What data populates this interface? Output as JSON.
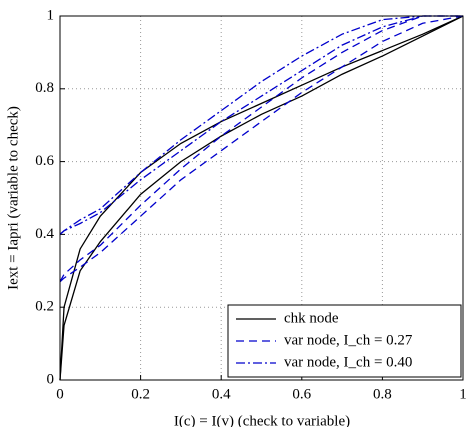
{
  "chart_data": {
    "type": "line",
    "xlabel": "I(c) = I(v) (check to variable)",
    "ylabel": "Iext = Iapri (variable to check)",
    "x": [
      0,
      0.01,
      0.05,
      0.1,
      0.2,
      0.3,
      0.4,
      0.5,
      0.6,
      0.7,
      0.8,
      0.9,
      1
    ],
    "series": [
      {
        "name": "chk node",
        "color": "#000000",
        "dash": "none",
        "curves": [
          {
            "values": [
              0,
              0.2,
              0.36,
              0.45,
              0.57,
              0.65,
              0.71,
              0.76,
              0.81,
              0.86,
              0.905,
              0.95,
              1
            ]
          },
          {
            "values": [
              0,
              0.15,
              0.3,
              0.38,
              0.51,
              0.6,
              0.67,
              0.73,
              0.78,
              0.84,
              0.89,
              0.945,
              1
            ]
          }
        ]
      },
      {
        "name": "var node, I_ch = 0.27",
        "color": "#0000cc",
        "dash": "8 5",
        "curves": [
          {
            "values": [
              0.27,
              0.29,
              0.33,
              0.37,
              0.48,
              0.58,
              0.67,
              0.75,
              0.83,
              0.9,
              0.96,
              1,
              1
            ]
          },
          {
            "values": [
              0.27,
              0.28,
              0.31,
              0.35,
              0.45,
              0.55,
              0.63,
              0.71,
              0.79,
              0.86,
              0.93,
              0.98,
              1
            ]
          }
        ]
      },
      {
        "name": "var node, I_ch = 0.40",
        "color": "#0000cc",
        "dash": "9 3 2 3",
        "curves": [
          {
            "values": [
              0.4,
              0.41,
              0.44,
              0.47,
              0.57,
              0.66,
              0.74,
              0.82,
              0.89,
              0.95,
              0.99,
              1,
              1
            ]
          },
          {
            "values": [
              0.4,
              0.41,
              0.43,
              0.46,
              0.55,
              0.63,
              0.71,
              0.78,
              0.85,
              0.92,
              0.97,
              1,
              1
            ]
          }
        ]
      }
    ],
    "xlim": [
      0,
      1
    ],
    "ylim": [
      0,
      1
    ],
    "xticks": [
      0,
      0.2,
      0.4,
      0.6,
      0.8,
      1
    ],
    "yticks": [
      0,
      0.2,
      0.4,
      0.6,
      0.8,
      1
    ],
    "grid": true,
    "legend": "lower right"
  }
}
